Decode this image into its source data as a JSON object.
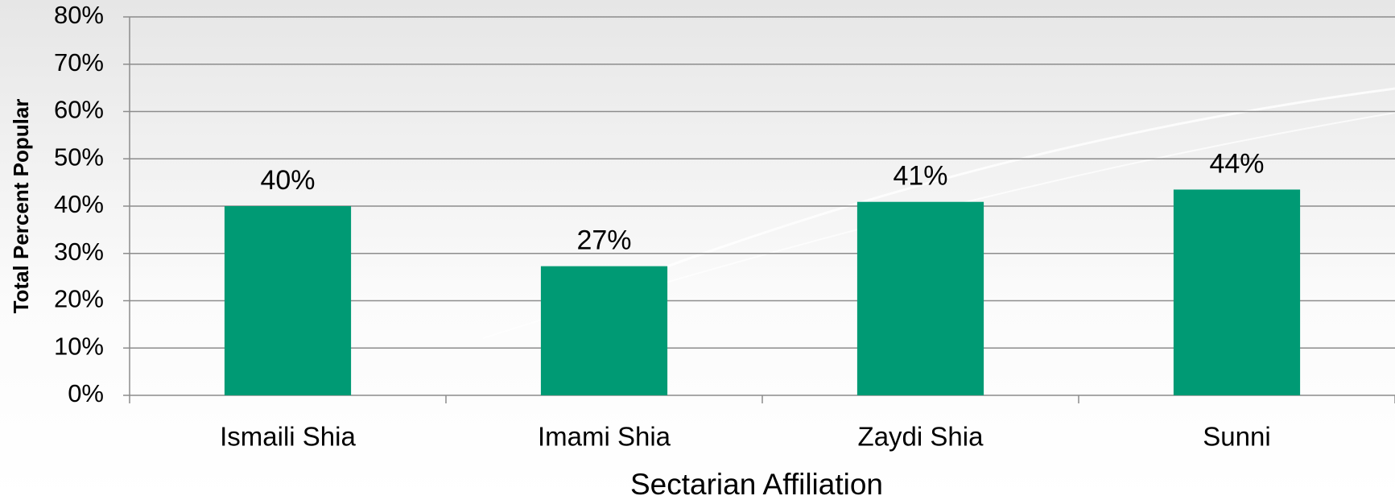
{
  "chart_data": {
    "type": "bar",
    "x_label": "Sectarian Affiliation",
    "y_label": "Total Percent Popular",
    "categories": [
      "Ismaili Shia",
      "Imami Shia",
      "Zaydi Shia",
      "Sunni"
    ],
    "values": [
      40,
      27.3,
      40.9,
      43.5
    ],
    "value_labels": [
      "40%",
      "27%",
      "41%",
      "44%"
    ],
    "color": "#009a74",
    "ylim": [
      0,
      80
    ],
    "yticks": [
      {
        "value": 0,
        "label": "0%"
      },
      {
        "value": 10,
        "label": "10%"
      },
      {
        "value": 20,
        "label": "20%"
      },
      {
        "value": 30,
        "label": "30%"
      },
      {
        "value": 40,
        "label": "40%"
      },
      {
        "value": 50,
        "label": "50%"
      },
      {
        "value": 60,
        "label": "60%"
      },
      {
        "value": 70,
        "label": "70%"
      },
      {
        "value": 80,
        "label": "80%"
      }
    ],
    "grid": true
  }
}
